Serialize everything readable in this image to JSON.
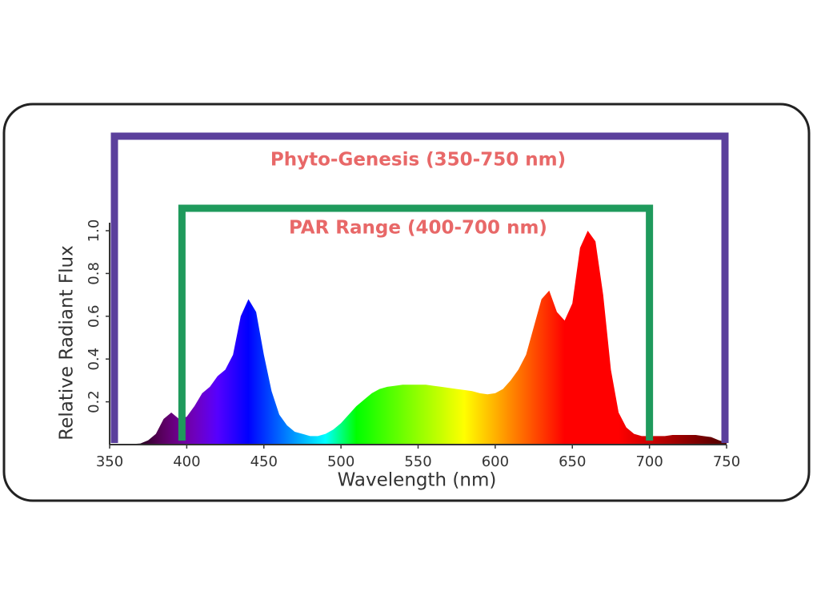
{
  "chart_data": {
    "type": "area",
    "x_label": "Wavelength (nm)",
    "y_label": "Relative Radiant Flux",
    "xlim": [
      350,
      750
    ],
    "xticks": [
      350,
      400,
      450,
      500,
      550,
      600,
      650,
      700,
      750
    ],
    "ylim": [
      0,
      1
    ],
    "yticks": [
      0.2,
      0.4,
      0.6,
      0.8,
      {
        "value": 1,
        "label": "1.0"
      }
    ],
    "ranges": [
      {
        "label": "Phyto-Genesis (350-750 nm)",
        "start": 350,
        "end": 750,
        "color": "#5b409c"
      },
      {
        "label": "PAR Range (400-700 nm)",
        "start": 400,
        "end": 700,
        "color": "#1f9a5c"
      }
    ],
    "x": [
      350,
      360,
      370,
      375,
      380,
      385,
      390,
      395,
      400,
      405,
      410,
      415,
      420,
      425,
      430,
      435,
      440,
      445,
      450,
      455,
      460,
      465,
      470,
      475,
      480,
      485,
      490,
      495,
      500,
      505,
      510,
      515,
      520,
      525,
      530,
      535,
      540,
      545,
      550,
      555,
      560,
      565,
      570,
      575,
      580,
      585,
      590,
      595,
      600,
      605,
      610,
      615,
      620,
      625,
      630,
      635,
      640,
      645,
      650,
      655,
      660,
      665,
      670,
      675,
      680,
      685,
      690,
      695,
      700,
      705,
      710,
      715,
      720,
      725,
      730,
      735,
      740,
      745,
      750
    ],
    "values": [
      0,
      0,
      0.005,
      0.02,
      0.05,
      0.12,
      0.15,
      0.12,
      0.13,
      0.18,
      0.24,
      0.27,
      0.32,
      0.35,
      0.42,
      0.6,
      0.68,
      0.62,
      0.42,
      0.25,
      0.14,
      0.09,
      0.06,
      0.05,
      0.04,
      0.04,
      0.05,
      0.07,
      0.1,
      0.14,
      0.18,
      0.21,
      0.24,
      0.26,
      0.27,
      0.275,
      0.28,
      0.28,
      0.28,
      0.28,
      0.275,
      0.27,
      0.265,
      0.26,
      0.255,
      0.25,
      0.24,
      0.235,
      0.24,
      0.26,
      0.3,
      0.35,
      0.42,
      0.55,
      0.68,
      0.72,
      0.62,
      0.58,
      0.66,
      0.92,
      1.0,
      0.95,
      0.7,
      0.35,
      0.15,
      0.08,
      0.05,
      0.04,
      0.04,
      0.04,
      0.04,
      0.045,
      0.045,
      0.045,
      0.045,
      0.04,
      0.035,
      0.02,
      0.01
    ]
  }
}
